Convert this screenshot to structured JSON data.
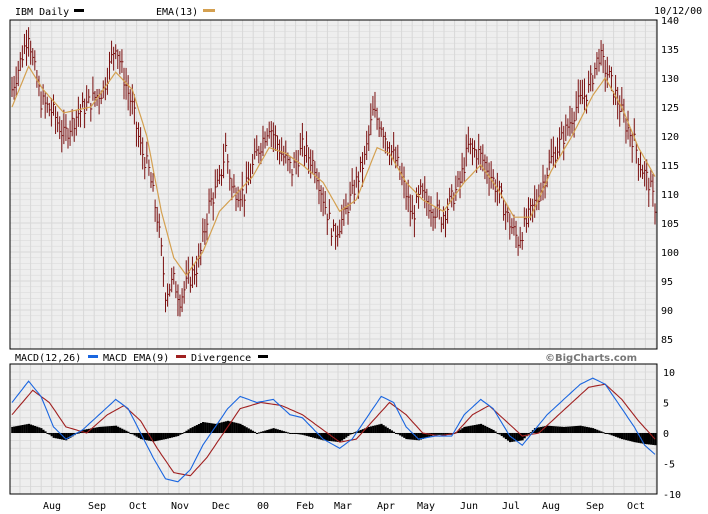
{
  "legend": {
    "price_label": "IBM Daily",
    "ema_label": "EMA(13)",
    "date": "10/12/00",
    "macd_label": "MACD(12,26)",
    "macd_ema_label": "MACD EMA(9)",
    "divergence_label": "Divergence",
    "watermark": "©BigCharts.com"
  },
  "colors": {
    "price_bar": "#7a1010",
    "ema": "#d4a050",
    "macd": "#1a66e0",
    "macd_signal": "#a02020",
    "divergence": "#000000",
    "grid": "#d8d8d8",
    "panel_bg": "#eeeeee"
  },
  "chart_data": [
    {
      "type": "ohlc",
      "title": "IBM Daily",
      "series_names": [
        "IBM Daily",
        "EMA(13)"
      ],
      "y_ticks": [
        140,
        135,
        130,
        125,
        120,
        115,
        110,
        105,
        100,
        95,
        90,
        85
      ],
      "x_ticks": [
        "Aug",
        "Sep",
        "Oct",
        "Nov",
        "Dec",
        "00",
        "Feb",
        "Mar",
        "Apr",
        "May",
        "Jun",
        "Jul",
        "Aug",
        "Sep",
        "Oct"
      ],
      "ylim": [
        85,
        140
      ],
      "price_anchors": [
        [
          0,
          128
        ],
        [
          5,
          134
        ],
        [
          8,
          138
        ],
        [
          10,
          133
        ],
        [
          14,
          126
        ],
        [
          20,
          124
        ],
        [
          25,
          120
        ],
        [
          32,
          124
        ],
        [
          38,
          126
        ],
        [
          44,
          128
        ],
        [
          50,
          136
        ],
        [
          54,
          130
        ],
        [
          58,
          125
        ],
        [
          62,
          118
        ],
        [
          66,
          114
        ],
        [
          70,
          106
        ],
        [
          72,
          100
        ],
        [
          74,
          93
        ],
        [
          78,
          95
        ],
        [
          81,
          92
        ],
        [
          85,
          95
        ],
        [
          90,
          98
        ],
        [
          95,
          108
        ],
        [
          100,
          112
        ],
        [
          103,
          118
        ],
        [
          106,
          111
        ],
        [
          112,
          110
        ],
        [
          118,
          117
        ],
        [
          124,
          122
        ],
        [
          130,
          117
        ],
        [
          135,
          114
        ],
        [
          140,
          118
        ],
        [
          146,
          115
        ],
        [
          151,
          108
        ],
        [
          155,
          103
        ],
        [
          160,
          106
        ],
        [
          165,
          111
        ],
        [
          170,
          116
        ],
        [
          174,
          124
        ],
        [
          178,
          122
        ],
        [
          182,
          118
        ],
        [
          186,
          115
        ],
        [
          190,
          110
        ],
        [
          193,
          106
        ],
        [
          197,
          110
        ],
        [
          202,
          108
        ],
        [
          207,
          106
        ],
        [
          212,
          109
        ],
        [
          216,
          112
        ],
        [
          220,
          118
        ],
        [
          225,
          117
        ],
        [
          230,
          114
        ],
        [
          236,
          109
        ],
        [
          240,
          105
        ],
        [
          244,
          102
        ],
        [
          248,
          105
        ],
        [
          254,
          110
        ],
        [
          260,
          116
        ],
        [
          266,
          120
        ],
        [
          272,
          125
        ],
        [
          278,
          128
        ],
        [
          283,
          134
        ],
        [
          288,
          130
        ],
        [
          292,
          126
        ],
        [
          296,
          122
        ],
        [
          300,
          119
        ],
        [
          303,
          115
        ],
        [
          307,
          112
        ],
        [
          310,
          108
        ]
      ],
      "ema_anchors": [
        [
          0,
          125
        ],
        [
          8,
          132
        ],
        [
          15,
          128
        ],
        [
          25,
          124
        ],
        [
          38,
          125
        ],
        [
          50,
          131
        ],
        [
          58,
          128
        ],
        [
          65,
          120
        ],
        [
          72,
          107
        ],
        [
          78,
          99
        ],
        [
          84,
          96
        ],
        [
          92,
          100
        ],
        [
          100,
          107
        ],
        [
          108,
          110
        ],
        [
          116,
          113
        ],
        [
          124,
          118
        ],
        [
          132,
          117
        ],
        [
          140,
          115
        ],
        [
          150,
          112
        ],
        [
          158,
          107
        ],
        [
          166,
          109
        ],
        [
          176,
          118
        ],
        [
          182,
          117
        ],
        [
          190,
          112
        ],
        [
          198,
          109
        ],
        [
          208,
          107
        ],
        [
          218,
          112
        ],
        [
          226,
          115
        ],
        [
          234,
          111
        ],
        [
          242,
          106
        ],
        [
          250,
          106
        ],
        [
          260,
          114
        ],
        [
          270,
          120
        ],
        [
          280,
          127
        ],
        [
          286,
          130
        ],
        [
          294,
          125
        ],
        [
          302,
          118
        ],
        [
          310,
          113
        ]
      ]
    },
    {
      "type": "line",
      "title": "MACD(12,26)",
      "y_ticks": [
        10,
        5,
        0,
        -5,
        -10
      ],
      "ylim": [
        -10,
        10
      ],
      "series_names": [
        "MACD(12,26)",
        "MACD EMA(9)",
        "Divergence"
      ],
      "macd_anchors": [
        [
          0,
          5
        ],
        [
          8,
          8.5
        ],
        [
          14,
          6
        ],
        [
          20,
          1
        ],
        [
          26,
          -1
        ],
        [
          34,
          0.5
        ],
        [
          42,
          3
        ],
        [
          50,
          5.5
        ],
        [
          56,
          4
        ],
        [
          62,
          0
        ],
        [
          68,
          -4
        ],
        [
          74,
          -7.5
        ],
        [
          80,
          -8
        ],
        [
          86,
          -6
        ],
        [
          92,
          -2
        ],
        [
          98,
          1
        ],
        [
          104,
          4
        ],
        [
          110,
          6
        ],
        [
          118,
          5
        ],
        [
          126,
          5.5
        ],
        [
          134,
          3
        ],
        [
          140,
          2.5
        ],
        [
          150,
          -1
        ],
        [
          158,
          -2.5
        ],
        [
          164,
          -1
        ],
        [
          172,
          3
        ],
        [
          178,
          6
        ],
        [
          184,
          5
        ],
        [
          190,
          1
        ],
        [
          196,
          -1
        ],
        [
          204,
          -0.5
        ],
        [
          212,
          -0.5
        ],
        [
          218,
          3
        ],
        [
          226,
          5.5
        ],
        [
          232,
          4
        ],
        [
          240,
          -0.5
        ],
        [
          246,
          -2
        ],
        [
          252,
          0.5
        ],
        [
          258,
          3
        ],
        [
          266,
          5.5
        ],
        [
          274,
          8
        ],
        [
          280,
          9
        ],
        [
          286,
          8
        ],
        [
          294,
          4
        ],
        [
          300,
          1
        ],
        [
          305,
          -2
        ],
        [
          310,
          -3.5
        ]
      ],
      "signal_anchors": [
        [
          0,
          3
        ],
        [
          10,
          7
        ],
        [
          18,
          5
        ],
        [
          26,
          1
        ],
        [
          36,
          0
        ],
        [
          46,
          3
        ],
        [
          54,
          4.5
        ],
        [
          62,
          2
        ],
        [
          70,
          -2.5
        ],
        [
          78,
          -6.5
        ],
        [
          86,
          -7
        ],
        [
          94,
          -4
        ],
        [
          102,
          0
        ],
        [
          110,
          4
        ],
        [
          120,
          5
        ],
        [
          130,
          4.5
        ],
        [
          140,
          3
        ],
        [
          150,
          0.5
        ],
        [
          158,
          -1.5
        ],
        [
          166,
          -1
        ],
        [
          174,
          2
        ],
        [
          182,
          5
        ],
        [
          190,
          3
        ],
        [
          198,
          0
        ],
        [
          206,
          -0.5
        ],
        [
          214,
          0
        ],
        [
          222,
          3
        ],
        [
          230,
          4.5
        ],
        [
          238,
          2
        ],
        [
          246,
          -0.5
        ],
        [
          254,
          0
        ],
        [
          262,
          2.5
        ],
        [
          270,
          5
        ],
        [
          278,
          7.5
        ],
        [
          286,
          8
        ],
        [
          294,
          5.5
        ],
        [
          302,
          2
        ],
        [
          310,
          -1
        ]
      ],
      "div_anchors": [
        [
          0,
          1
        ],
        [
          8,
          1.5
        ],
        [
          14,
          0.8
        ],
        [
          20,
          -0.8
        ],
        [
          26,
          -1.2
        ],
        [
          34,
          0.5
        ],
        [
          42,
          1
        ],
        [
          50,
          1.2
        ],
        [
          56,
          0.2
        ],
        [
          62,
          -1
        ],
        [
          68,
          -1.4
        ],
        [
          74,
          -1
        ],
        [
          80,
          -0.5
        ],
        [
          86,
          0.8
        ],
        [
          92,
          1.8
        ],
        [
          98,
          1.5
        ],
        [
          104,
          2
        ],
        [
          110,
          1.5
        ],
        [
          118,
          0
        ],
        [
          126,
          0.8
        ],
        [
          134,
          0
        ],
        [
          140,
          -0.3
        ],
        [
          150,
          -1.2
        ],
        [
          158,
          -1.5
        ],
        [
          164,
          0
        ],
        [
          172,
          1
        ],
        [
          178,
          1.5
        ],
        [
          184,
          0.2
        ],
        [
          190,
          -1
        ],
        [
          196,
          -1.2
        ],
        [
          204,
          -0.3
        ],
        [
          212,
          -0.3
        ],
        [
          218,
          1
        ],
        [
          226,
          1.5
        ],
        [
          232,
          0.5
        ],
        [
          240,
          -1.5
        ],
        [
          246,
          -1.2
        ],
        [
          252,
          0.8
        ],
        [
          258,
          1.2
        ],
        [
          266,
          1
        ],
        [
          274,
          1.2
        ],
        [
          280,
          0.8
        ],
        [
          286,
          0
        ],
        [
          294,
          -1
        ],
        [
          300,
          -1.5
        ],
        [
          305,
          -1.8
        ],
        [
          310,
          -2
        ]
      ]
    }
  ]
}
